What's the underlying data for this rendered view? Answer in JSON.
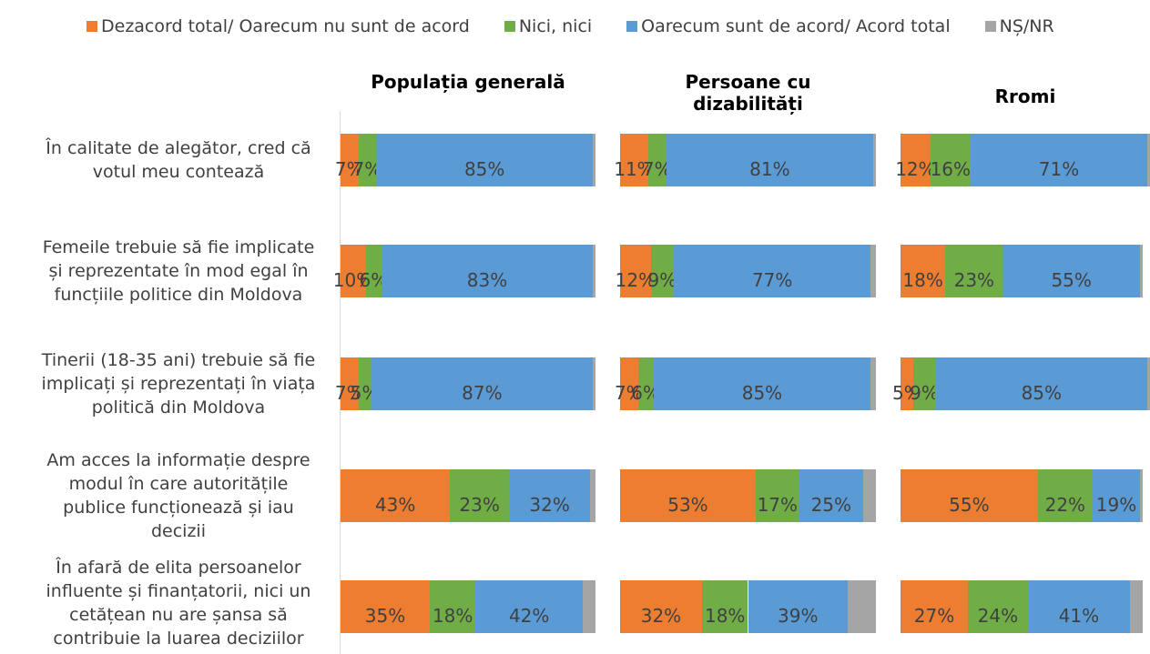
{
  "chart_data": {
    "type": "bar",
    "orientation": "horizontal",
    "stacked": true,
    "panels": [
      "Populația generală",
      "Persoane cu dizabilități",
      "Rromi"
    ],
    "categories": [
      "În calitate de alegător, cred că votul meu contează",
      "Femeile trebuie să fie implicate și reprezentate în mod egal în funcțiile politice din Moldova",
      "Tinerii (18-35 ani) trebuie să fie implicați și reprezentați în viața politică din Moldova",
      "Am acces la informație despre modul în care autoritățile publice funcționează și iau decizii",
      "În afară de elita persoanelor influente și finanțatorii, nici un cetățean nu are șansa să contribuie la luarea deciziilor"
    ],
    "xlim": [
      0,
      100
    ],
    "legend": "top",
    "series": [
      {
        "name": "Dezacord total/ Oarecum nu sunt de acord",
        "color": "#ed7d31",
        "values": [
          [
            7,
            10,
            7,
            43,
            35
          ],
          [
            11,
            12,
            7,
            53,
            32
          ],
          [
            12,
            18,
            5,
            55,
            27
          ]
        ],
        "value_labels": [
          [
            "7%",
            "10%",
            "7%",
            "43%",
            "35%"
          ],
          [
            "11%",
            "12%",
            "7%",
            "53%",
            "32%"
          ],
          [
            "12%",
            "18%",
            "5%",
            "55%",
            "27%"
          ]
        ]
      },
      {
        "name": "Nici, nici",
        "color": "#70ad47",
        "values": [
          [
            7,
            6,
            5,
            23,
            18
          ],
          [
            7,
            9,
            6,
            17,
            18
          ],
          [
            16,
            23,
            9,
            22,
            24
          ]
        ],
        "value_labels": [
          [
            "7%",
            "6%",
            "5%",
            "23%",
            "18%"
          ],
          [
            "7%",
            "9%",
            "6%",
            "17%",
            "18%"
          ],
          [
            "16%",
            "23%",
            "9%",
            "22%",
            "24%"
          ]
        ]
      },
      {
        "name": "Oarecum sunt de acord/ Acord total",
        "color": "#5b9bd5",
        "values": [
          [
            85,
            83,
            87,
            32,
            42
          ],
          [
            81,
            77,
            85,
            25,
            39
          ],
          [
            71,
            55,
            85,
            19,
            41
          ]
        ],
        "value_labels": [
          [
            "85%",
            "83%",
            "87%",
            "32%",
            "42%"
          ],
          [
            "81%",
            "77%",
            "85%",
            "25%",
            "39%"
          ],
          [
            "71%",
            "55%",
            "85%",
            "19%",
            "41%"
          ]
        ]
      },
      {
        "name": "NȘ/NR",
        "color": "#a5a5a5",
        "values": [
          [
            1,
            1,
            1,
            2,
            5
          ],
          [
            1,
            2,
            2,
            5,
            11
          ],
          [
            1,
            1,
            1,
            1,
            5
          ]
        ]
      }
    ]
  }
}
